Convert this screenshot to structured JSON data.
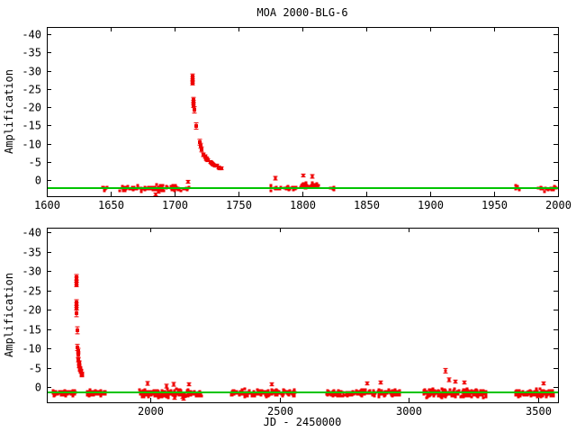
{
  "title": "MOA 2000-BLG-6",
  "axis": {
    "ylabel": "Amplification",
    "xlabel": "JD - 2450000"
  },
  "colors": {
    "data_marker": "#ee0000",
    "baseline_line": "#00c400",
    "frame": "#000000",
    "background": "#ffffff"
  },
  "chart_data": [
    {
      "type": "scatter",
      "name": "top-panel-season-2000",
      "ylabel": "Amplification",
      "xlabel": "",
      "xlim": [
        1600,
        2000
      ],
      "ylim": [
        -42.0,
        4.45
      ],
      "xticks": [
        1600,
        1650,
        1700,
        1750,
        1800,
        1850,
        1900,
        1950,
        2000
      ],
      "yticks": [
        -40,
        -35,
        -30,
        -25,
        -20,
        -15,
        -10,
        -5,
        0
      ],
      "grid": false,
      "legend": "none",
      "baseline_value": 2.2,
      "cluster_y": 2.3,
      "cluster_jitter": 0.7,
      "seed": 11,
      "peak_points": [
        [
          1713.8,
          -28.4,
          0.7
        ],
        [
          1714.0,
          -27.7,
          0.7
        ],
        [
          1714.2,
          -27.1,
          0.6
        ],
        [
          1713.9,
          -26.6,
          0.6
        ],
        [
          1714.8,
          -21.9,
          0.7
        ],
        [
          1715.0,
          -21.2,
          0.6
        ],
        [
          1715.1,
          -20.5,
          0.6
        ],
        [
          1715.6,
          -19.2,
          0.9
        ],
        [
          1716.9,
          -14.7,
          0.9
        ],
        [
          1719.6,
          -10.3,
          0.8
        ],
        [
          1720.1,
          -9.4,
          0.7
        ],
        [
          1720.9,
          -8.5,
          0.7
        ],
        [
          1722.8,
          -6.9,
          0.5
        ],
        [
          1723.6,
          -6.4,
          0.5
        ],
        [
          1724.4,
          -6.0,
          0.5
        ],
        [
          1725.2,
          -5.7,
          0.5
        ],
        [
          1726.0,
          -5.4,
          0.4
        ],
        [
          1728.0,
          -4.9,
          0.4
        ],
        [
          1728.8,
          -4.6,
          0.4
        ],
        [
          1729.6,
          -4.4,
          0.4
        ],
        [
          1730.6,
          -4.2,
          0.4
        ],
        [
          1731.6,
          -4.0,
          0.4
        ],
        [
          1732.8,
          -3.9,
          0.4
        ],
        [
          1734.5,
          -3.5,
          0.4
        ],
        [
          1735.5,
          -3.3,
          0.4
        ],
        [
          1736.5,
          -3.1,
          0.4
        ]
      ],
      "extra_points": [
        [
          1779.0,
          -0.4,
          0.5
        ],
        [
          1808.0,
          -0.9,
          0.5
        ],
        [
          1800.5,
          -1.2,
          0.4
        ],
        [
          1685.0,
          4.0,
          0.4
        ],
        [
          1687.0,
          3.2,
          0.4
        ],
        [
          1710.5,
          0.4,
          0.4
        ]
      ],
      "baseline_clusters": [
        {
          "x0": 1643,
          "x1": 1648,
          "n": 10
        },
        {
          "x0": 1656,
          "x1": 1666,
          "n": 26
        },
        {
          "x0": 1667,
          "x1": 1677,
          "n": 22
        },
        {
          "x0": 1678,
          "x1": 1695,
          "n": 40
        },
        {
          "x0": 1697,
          "x1": 1712,
          "n": 30
        },
        {
          "x0": 1775,
          "x1": 1784,
          "n": 14
        },
        {
          "x0": 1786,
          "x1": 1797,
          "n": 18
        },
        {
          "x0": 1798,
          "x1": 1813,
          "n": 26,
          "y": 1.5
        },
        {
          "x0": 1821,
          "x1": 1825,
          "n": 6
        },
        {
          "x0": 1966,
          "x1": 1970,
          "n": 7
        },
        {
          "x0": 1984,
          "x1": 1999,
          "n": 24
        }
      ]
    },
    {
      "type": "scatter",
      "name": "bottom-panel-full-baseline",
      "ylabel": "Amplification",
      "xlabel": "JD - 2450000",
      "xlim": [
        1600,
        3576
      ],
      "ylim": [
        -41.2,
        3.95
      ],
      "xticks": [
        2000,
        2500,
        3000,
        3500
      ],
      "yticks": [
        -40,
        -35,
        -30,
        -25,
        -20,
        -15,
        -10,
        -5,
        0
      ],
      "grid": false,
      "legend": "none",
      "baseline_value": 1.5,
      "cluster_y": 1.6,
      "cluster_jitter": 0.7,
      "seed": 23,
      "peak_points": [
        [
          1713.8,
          -28.4,
          0.7
        ],
        [
          1714.0,
          -27.7,
          0.7
        ],
        [
          1714.2,
          -27.1,
          0.6
        ],
        [
          1713.9,
          -26.6,
          0.6
        ],
        [
          1714.8,
          -21.9,
          0.7
        ],
        [
          1715.0,
          -21.2,
          0.6
        ],
        [
          1715.1,
          -20.5,
          0.6
        ],
        [
          1715.6,
          -19.2,
          0.9
        ],
        [
          1716.9,
          -14.7,
          0.9
        ],
        [
          1719.6,
          -10.3,
          0.8
        ],
        [
          1720.1,
          -9.4,
          0.7
        ],
        [
          1720.9,
          -8.5,
          0.7
        ],
        [
          1722.8,
          -6.9,
          0.5
        ],
        [
          1723.6,
          -6.4,
          0.5
        ],
        [
          1724.4,
          -6.0,
          0.5
        ],
        [
          1725.2,
          -5.7,
          0.5
        ],
        [
          1726.0,
          -5.4,
          0.4
        ],
        [
          1728.0,
          -4.9,
          0.4
        ],
        [
          1728.8,
          -4.6,
          0.4
        ],
        [
          1729.6,
          -4.4,
          0.4
        ],
        [
          1730.6,
          -4.2,
          0.4
        ],
        [
          1731.6,
          -4.0,
          0.4
        ],
        [
          1732.8,
          -3.9,
          0.4
        ],
        [
          1734.5,
          -3.5,
          0.4
        ],
        [
          1735.5,
          -3.3,
          0.4
        ],
        [
          1736.5,
          -3.1,
          0.4
        ]
      ],
      "extra_points": [
        [
          2126,
          2.6,
          0.4
        ],
        [
          2129,
          3.1,
          0.4
        ],
        [
          2132,
          2.4,
          0.4
        ],
        [
          2095,
          2.8,
          0.4
        ],
        [
          2063,
          -0.3,
          0.5
        ],
        [
          2090,
          -0.6,
          0.5
        ],
        [
          1990,
          -0.9,
          0.5
        ],
        [
          2150,
          -0.7,
          0.4
        ],
        [
          2470,
          -0.8,
          0.4
        ],
        [
          2840,
          -0.9,
          0.4
        ],
        [
          2890,
          -1.2,
          0.4
        ],
        [
          3140,
          -4.2,
          0.6
        ],
        [
          3155,
          -1.9,
          0.5
        ],
        [
          3180,
          -1.4,
          0.4
        ],
        [
          3215,
          -1.2,
          0.4
        ],
        [
          3520,
          -0.9,
          0.4
        ]
      ],
      "baseline_clusters": [
        {
          "x0": 1622,
          "x1": 1712,
          "n": 95
        },
        {
          "x0": 1755,
          "x1": 1813,
          "n": 48
        },
        {
          "x0": 1821,
          "x1": 1826,
          "n": 6
        },
        {
          "x0": 1958,
          "x1": 2200,
          "n": 200,
          "jitter": 0.9
        },
        {
          "x0": 2312,
          "x1": 2560,
          "n": 170,
          "jitter": 0.8
        },
        {
          "x0": 2680,
          "x1": 2965,
          "n": 200,
          "jitter": 0.8
        },
        {
          "x0": 3058,
          "x1": 3298,
          "n": 180,
          "jitter": 1.0
        },
        {
          "x0": 3409,
          "x1": 3560,
          "n": 130,
          "jitter": 0.8
        }
      ]
    }
  ]
}
